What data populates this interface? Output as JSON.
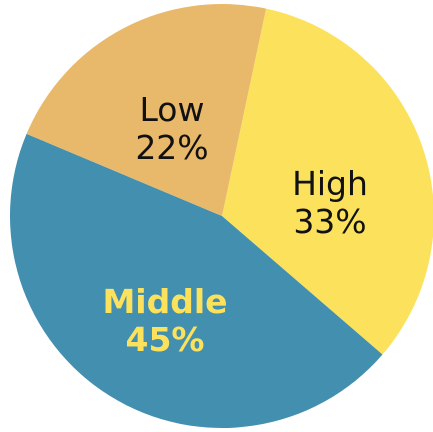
{
  "chart_data": {
    "type": "pie",
    "slices": [
      {
        "label": "High",
        "value": 33,
        "value_label": "33%",
        "color": "#FCE25C",
        "label_color": "#111111",
        "label_bold": false
      },
      {
        "label": "Middle",
        "value": 45,
        "value_label": "45%",
        "color": "#428FB0",
        "label_color": "#FCE25C",
        "label_bold": true
      },
      {
        "label": "Low",
        "value": 22,
        "value_label": "22%",
        "color": "#E8B96A",
        "label_color": "#111111",
        "label_bold": false
      }
    ],
    "title": "",
    "legend": "none",
    "start_angle_deg": 12,
    "direction": "clockwise"
  }
}
